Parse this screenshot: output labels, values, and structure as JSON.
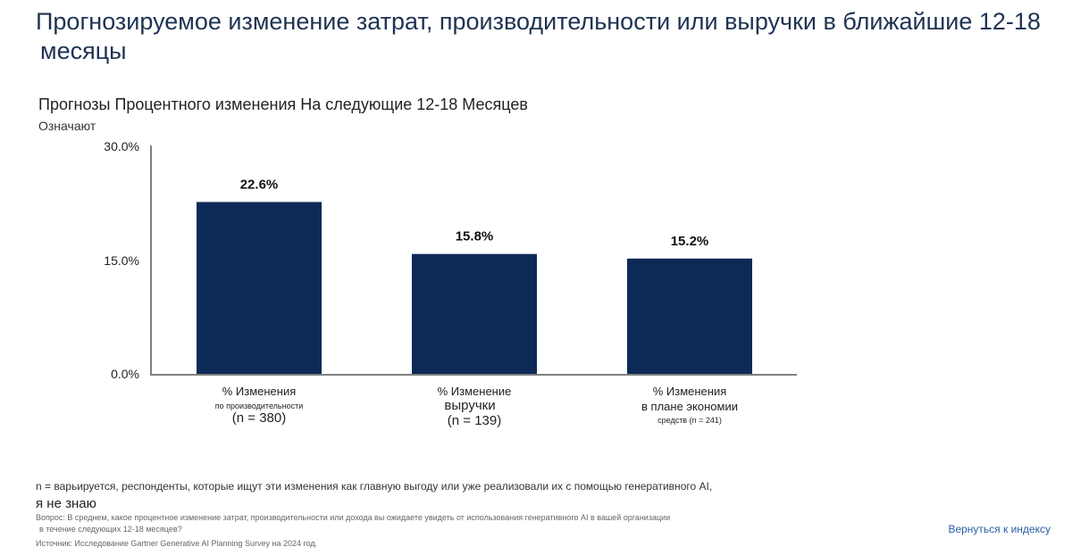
{
  "header": {
    "title_line1": "Прогнозируемое изменение затрат, производительности или выручки в ближайшие 12-18",
    "title_line2": "месяцы"
  },
  "chart_data": {
    "type": "bar",
    "title": "Прогнозы Процентного изменения На следующие 12-18 Месяцев",
    "subtitle": "Означают",
    "categories": [
      "% Изменения по производительности (n = 380)",
      "% Изменение выручки (n = 139)",
      "% Изменения в плане экономии средств (n = 241)"
    ],
    "values": [
      22.6,
      15.8,
      15.2
    ],
    "value_labels": [
      "22.6%",
      "15.8%",
      "15.2%"
    ],
    "ylim": [
      0,
      30
    ],
    "yticks": [
      0,
      15,
      30
    ],
    "ytick_labels": [
      "0.0%",
      "15.0%",
      "30.0%"
    ],
    "bar_color": "#0d2a57",
    "grid": false
  },
  "xaxis_labels": [
    {
      "l1": "% Изменения",
      "l2": "по производительности",
      "l3": "(n = 380)"
    },
    {
      "l1": "% Изменение",
      "l2": "выручки",
      "l3": "(n = 139)"
    },
    {
      "l1": "% Изменения",
      "l2": "в плане экономии",
      "l3": "средств (n = 241)"
    }
  ],
  "footnotes": {
    "n_note": "n = варьируется, респонденты, которые ищут эти изменения как главную выгоду или уже реализовали их с помощью генеративного AI,",
    "dont_know": "я не знаю",
    "question_line1": "Вопрос: В среднем, какое процентное изменение затрат, производительности или дохода вы ожидаете увидеть от использования генеративного AI в вашей организации",
    "question_line2": "в течение следующих 12-18 месяцев?",
    "source": "Источник: Исследование Gartner Generative AI Planning Survey на 2024 год."
  },
  "nav": {
    "back_label": "Вернуться к индексу"
  }
}
